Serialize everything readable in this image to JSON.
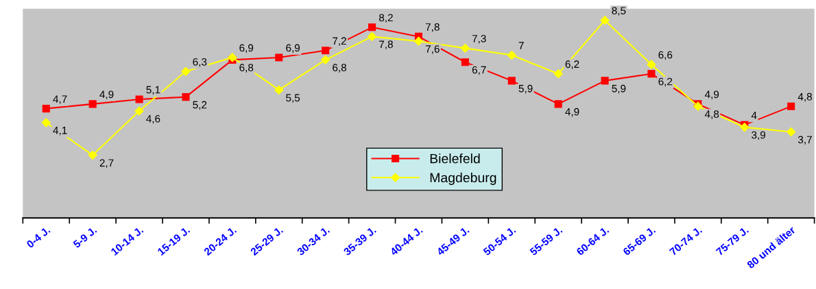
{
  "chart_data": {
    "type": "line",
    "categories": [
      "0-4 J.",
      "5-9 J.",
      "10-14 J.",
      "15-19 J.",
      "20-24 J.",
      "25-29 J.",
      "30-34 J.",
      "35-39 J.",
      "40-44 J.",
      "45-49 J.",
      "50-54 J.",
      "55-59 J.",
      "60-64 J.",
      "65-69 J.",
      "70-74 J.",
      "75-79 J.",
      "80 und älter"
    ],
    "series": [
      {
        "name": "Bielefeld",
        "color": "#ff0000",
        "marker": "square",
        "values": [
          4.7,
          4.9,
          5.1,
          5.2,
          6.8,
          6.9,
          7.2,
          8.2,
          7.8,
          6.7,
          5.9,
          4.9,
          5.9,
          6.2,
          4.9,
          4.0,
          4.8
        ],
        "value_labels": [
          "4,7",
          "4,9",
          "5,1",
          "5,2",
          "6,8",
          "6,9",
          "7,2",
          "8,2",
          "7,8",
          "6,7",
          "5,9",
          "4,9",
          "5,9",
          "6,2",
          "4,9",
          "4",
          "4,8"
        ]
      },
      {
        "name": "Magdeburg",
        "color": "#ffff00",
        "marker": "diamond",
        "values": [
          4.1,
          2.7,
          4.6,
          6.3,
          6.9,
          5.5,
          6.8,
          7.8,
          7.6,
          7.3,
          7.0,
          6.2,
          8.5,
          6.6,
          4.8,
          3.9,
          3.7
        ],
        "value_labels": [
          "4,1",
          "2,7",
          "4,6",
          "6,3",
          "6,9",
          "5,5",
          "6,8",
          "7,8",
          "7,6",
          "7,3",
          "7",
          "6,2",
          "8,5",
          "6,6",
          "4,8",
          "3,9",
          "3,7"
        ]
      }
    ],
    "ylim": [
      0,
      9
    ],
    "tick_labels": "x",
    "grid": false,
    "legend": "bottom",
    "line_style": "solid"
  }
}
